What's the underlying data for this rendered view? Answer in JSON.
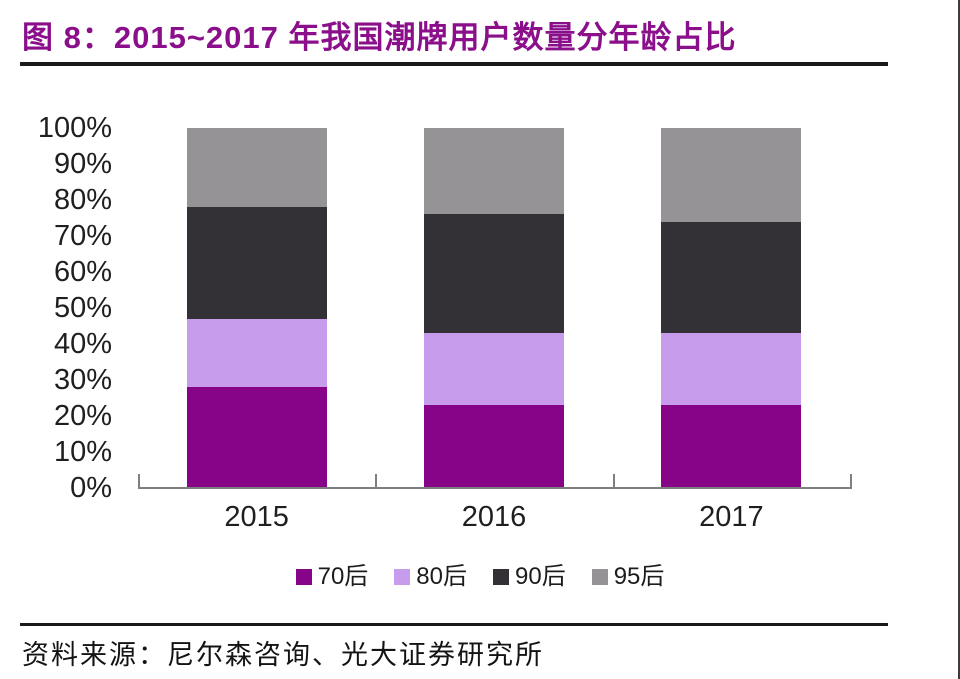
{
  "title": "图 8：2015~2017 年我国潮牌用户数量分年龄占比",
  "source": "资料来源：尼尔森咨询、光大证券研究所",
  "colors": {
    "background": "#FFFFFF",
    "title": "#8B0F8B",
    "rule": "#1A1A1A",
    "axis": "#7F7F7F",
    "label_text": "#1F1F1F",
    "right_border": "#3C3C3C"
  },
  "chart_data": {
    "type": "bar",
    "stacked": true,
    "title": "2015~2017 年我国潮牌用户数量分年龄占比",
    "categories": [
      "2015",
      "2016",
      "2017"
    ],
    "series": [
      {
        "name": "70后",
        "color": "#870388",
        "values": [
          28,
          23,
          23
        ]
      },
      {
        "name": "80后",
        "color": "#C89CEC",
        "values": [
          19,
          20,
          20
        ]
      },
      {
        "name": "90后",
        "color": "#333136",
        "values": [
          31,
          33,
          31
        ]
      },
      {
        "name": "95后",
        "color": "#969396",
        "values": [
          22,
          24,
          26
        ]
      }
    ],
    "unit": "percent",
    "ylim": [
      0,
      100
    ],
    "y_tick_step": 10,
    "y_tick_labels": [
      "0%",
      "10%",
      "20%",
      "30%",
      "40%",
      "50%",
      "60%",
      "70%",
      "80%",
      "90%",
      "100%"
    ],
    "xlabel": "",
    "ylabel": "",
    "grid": false,
    "legend_position": "bottom"
  }
}
